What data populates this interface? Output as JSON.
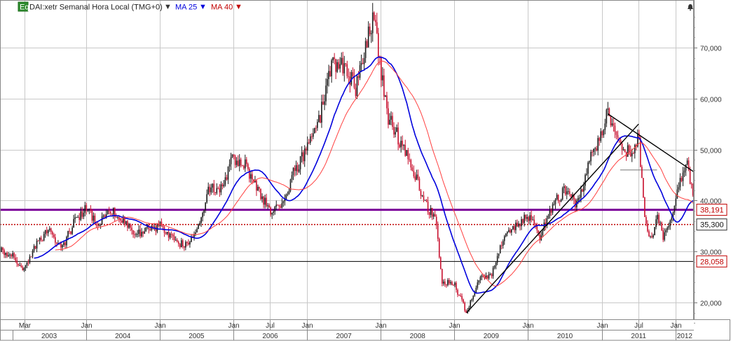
{
  "header": {
    "badge": "Eq",
    "symbol": "DAI:xetr Semanal Hora Local (TMG+0)",
    "dropdown_glyph": "▼",
    "ma1_label": "MA 25",
    "ma1_glyph": "▼",
    "ma2_label": "MA 40",
    "ma2_glyph": "▼",
    "bell_icon": "bell-icon"
  },
  "colors": {
    "up": "#1a1a1a",
    "down": "#c8102e",
    "ma25": "#0000dd",
    "ma40": "#ff4040",
    "resistance": "#7b0099",
    "support_dotted": "#c00000",
    "grid": "#c8c8c8",
    "trend": "#000000",
    "tag_border": "#c00000",
    "tag_text": "#c00000"
  },
  "chart_data": {
    "type": "candlestick",
    "period": "weekly",
    "x_range": [
      "2002-11",
      "2012-04"
    ],
    "ylim": [
      15000,
      78000
    ],
    "y_ticks": [
      20000,
      30000,
      40000,
      50000,
      60000,
      70000
    ],
    "y_tick_labels": [
      "20,000",
      "30,000",
      "40,000",
      "50,000",
      "60,000",
      "70,000"
    ],
    "month_labels": [
      {
        "date": "2003-03",
        "label": "Mar"
      },
      {
        "date": "2004-01",
        "label": "Jan"
      },
      {
        "date": "2005-01",
        "label": "Jan"
      },
      {
        "date": "2006-01",
        "label": "Jan"
      },
      {
        "date": "2006-07",
        "label": "Jul"
      },
      {
        "date": "2007-01",
        "label": "Jan"
      },
      {
        "date": "2008-01",
        "label": "Jan"
      },
      {
        "date": "2009-01",
        "label": "Jan"
      },
      {
        "date": "2010-01",
        "label": "Jan"
      },
      {
        "date": "2011-01",
        "label": "Jan"
      },
      {
        "date": "2011-07",
        "label": "Jul"
      },
      {
        "date": "2012-01",
        "label": "Jan"
      }
    ],
    "year_labels": [
      "2003",
      "2004",
      "2005",
      "2006",
      "2007",
      "2008",
      "2009",
      "2010",
      "2011",
      "2012"
    ],
    "price_path": [
      {
        "t": "2002-11",
        "p": 30500
      },
      {
        "t": "2003-01",
        "p": 29000
      },
      {
        "t": "2003-03",
        "p": 26500
      },
      {
        "t": "2003-05",
        "p": 31500
      },
      {
        "t": "2003-07",
        "p": 34500
      },
      {
        "t": "2003-09",
        "p": 30500
      },
      {
        "t": "2003-11",
        "p": 35500
      },
      {
        "t": "2004-01",
        "p": 38500
      },
      {
        "t": "2004-03",
        "p": 35000
      },
      {
        "t": "2004-05",
        "p": 38000
      },
      {
        "t": "2004-07",
        "p": 36000
      },
      {
        "t": "2004-09",
        "p": 33500
      },
      {
        "t": "2004-11",
        "p": 34500
      },
      {
        "t": "2005-01",
        "p": 35000
      },
      {
        "t": "2005-03",
        "p": 33000
      },
      {
        "t": "2005-05",
        "p": 31000
      },
      {
        "t": "2005-07",
        "p": 34500
      },
      {
        "t": "2005-09",
        "p": 42000
      },
      {
        "t": "2005-11",
        "p": 42500
      },
      {
        "t": "2006-01",
        "p": 48500
      },
      {
        "t": "2006-03",
        "p": 47000
      },
      {
        "t": "2006-05",
        "p": 42000
      },
      {
        "t": "2006-07",
        "p": 38000
      },
      {
        "t": "2006-09",
        "p": 39000
      },
      {
        "t": "2006-11",
        "p": 46000
      },
      {
        "t": "2007-01",
        "p": 50000
      },
      {
        "t": "2007-03",
        "p": 56000
      },
      {
        "t": "2007-05",
        "p": 67000
      },
      {
        "t": "2007-07",
        "p": 66000
      },
      {
        "t": "2007-09",
        "p": 62000
      },
      {
        "t": "2007-11",
        "p": 73000
      },
      {
        "t": "2007-12",
        "p": 76000
      },
      {
        "t": "2008-01",
        "p": 66000
      },
      {
        "t": "2008-02",
        "p": 57000
      },
      {
        "t": "2008-04",
        "p": 52000
      },
      {
        "t": "2008-06",
        "p": 47000
      },
      {
        "t": "2008-08",
        "p": 40000
      },
      {
        "t": "2008-10",
        "p": 36000
      },
      {
        "t": "2008-11",
        "p": 24000
      },
      {
        "t": "2009-01",
        "p": 23500
      },
      {
        "t": "2009-03",
        "p": 18000
      },
      {
        "t": "2009-05",
        "p": 24500
      },
      {
        "t": "2009-07",
        "p": 25500
      },
      {
        "t": "2009-09",
        "p": 33000
      },
      {
        "t": "2009-11",
        "p": 35000
      },
      {
        "t": "2010-01",
        "p": 37000
      },
      {
        "t": "2010-03",
        "p": 33000
      },
      {
        "t": "2010-05",
        "p": 39000
      },
      {
        "t": "2010-07",
        "p": 42000
      },
      {
        "t": "2010-09",
        "p": 39000
      },
      {
        "t": "2010-11",
        "p": 48000
      },
      {
        "t": "2011-01",
        "p": 53500
      },
      {
        "t": "2011-02",
        "p": 58000
      },
      {
        "t": "2011-04",
        "p": 50000
      },
      {
        "t": "2011-06",
        "p": 49500
      },
      {
        "t": "2011-07",
        "p": 53000
      },
      {
        "t": "2011-08",
        "p": 36000
      },
      {
        "t": "2011-09",
        "p": 32000
      },
      {
        "t": "2011-10",
        "p": 37000
      },
      {
        "t": "2011-11",
        "p": 33000
      },
      {
        "t": "2011-12",
        "p": 35000
      },
      {
        "t": "2012-02",
        "p": 45000
      },
      {
        "t": "2012-03",
        "p": 47000
      },
      {
        "t": "2012-04",
        "p": 40000
      },
      {
        "t": "2012-05",
        "p": 36000
      },
      {
        "t": "2012-06",
        "p": 35300
      }
    ],
    "moving_averages": [
      {
        "name": "MA 25",
        "period": 25
      },
      {
        "name": "MA 40",
        "period": 40
      }
    ],
    "horizontal_levels": [
      {
        "value": 38191,
        "label": "38,191",
        "style": "solid-thick",
        "color_key": "resistance"
      },
      {
        "value": 35300,
        "label": "35,300",
        "style": "dotted",
        "color_key": "support_dotted"
      },
      {
        "value": 28058,
        "label": "28,058",
        "style": "solid-thin",
        "color_key": "trend"
      }
    ],
    "trend_lines": [
      {
        "from": {
          "t": "2009-03",
          "p": 18000
        },
        "to": {
          "t": "2011-07",
          "p": 55000
        }
      },
      {
        "from": {
          "t": "2011-02",
          "p": 57000
        },
        "to": {
          "t": "2012-06",
          "p": 44000
        }
      }
    ],
    "short_levels": [
      {
        "from_t": "2011-04",
        "to_t": "2011-10",
        "p": 46000
      }
    ],
    "current_price": {
      "value": 35300,
      "label": "35,300"
    }
  }
}
